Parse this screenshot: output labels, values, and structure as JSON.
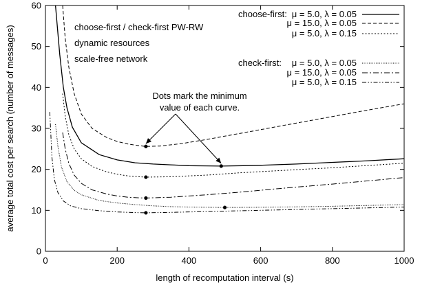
{
  "chart_data": {
    "type": "line",
    "xlabel": "length of recomputation interval (s)",
    "ylabel": "average total cost per search (number of messages)",
    "xlim": [
      0,
      1000
    ],
    "ylim": [
      0,
      60
    ],
    "xticks": [
      0,
      200,
      400,
      600,
      800,
      1000
    ],
    "yticks": [
      0,
      10,
      20,
      30,
      40,
      50,
      60
    ],
    "grid": false,
    "legend_position": "top-right",
    "text_notes": [
      "choose-first / check-first PW-RW",
      "dynamic resources",
      "scale-free network"
    ],
    "annotation": {
      "line1": "Dots mark the minimum",
      "line2": "value of each curve.",
      "points_to": [
        [
          280,
          25.6
        ],
        [
          490,
          20.8
        ]
      ]
    },
    "legend_groups": [
      "choose-first:",
      "check-first:"
    ],
    "series": [
      {
        "name": "μ = 5.0, λ = 0.05",
        "group": "choose-first:",
        "dash": "solid",
        "x": [
          28,
          40,
          50,
          60,
          75,
          100,
          150,
          200,
          250,
          300,
          350,
          400,
          450,
          490,
          550,
          600,
          700,
          800,
          900,
          1000
        ],
        "y": [
          60,
          48,
          40,
          35,
          30.3,
          26.5,
          23.6,
          22.3,
          21.6,
          21.3,
          21.1,
          20.9,
          20.85,
          20.8,
          20.9,
          21.0,
          21.3,
          21.7,
          22.1,
          22.6
        ],
        "min": [
          490,
          20.8
        ]
      },
      {
        "name": "μ = 15.0, λ = 0.05",
        "group": "choose-first:",
        "dash": "dashed",
        "x": [
          48,
          55,
          65,
          80,
          100,
          130,
          170,
          200,
          230,
          260,
          280,
          320,
          380,
          450,
          500,
          600,
          700,
          800,
          900,
          1000
        ],
        "y": [
          60,
          52,
          45,
          38.5,
          33.5,
          30,
          27.8,
          26.8,
          26.2,
          25.8,
          25.6,
          25.7,
          26.3,
          27.3,
          28.1,
          29.7,
          31.3,
          32.9,
          34.5,
          36
        ],
        "min": [
          280,
          25.6
        ]
      },
      {
        "name": "μ = 5.0, λ = 0.15",
        "group": "choose-first:",
        "dash": "dotted",
        "x": [
          48,
          55,
          65,
          80,
          100,
          130,
          170,
          200,
          230,
          260,
          280,
          350,
          450,
          550,
          650,
          800,
          1000
        ],
        "y": [
          38.5,
          33,
          28.5,
          25,
          22.6,
          20.7,
          19.4,
          18.8,
          18.4,
          18.2,
          18.1,
          18.2,
          18.6,
          19.2,
          19.7,
          20.4,
          21.5
        ],
        "min": [
          280,
          18.1
        ]
      },
      {
        "name": "μ = 5.0, λ = 0.05",
        "group": "check-first:",
        "dash": "fine-dotted",
        "x": [
          28,
          35,
          45,
          60,
          80,
          100,
          150,
          200,
          250,
          300,
          350,
          400,
          450,
          500,
          600,
          700,
          800,
          900,
          1000
        ],
        "y": [
          31,
          25.5,
          20.5,
          17,
          14.9,
          13.8,
          12.4,
          11.8,
          11.4,
          11.1,
          10.9,
          10.8,
          10.75,
          10.7,
          10.75,
          10.85,
          11,
          11.2,
          11.4
        ],
        "min": [
          500,
          10.7
        ]
      },
      {
        "name": "μ = 15.0, λ = 0.05",
        "group": "check-first:",
        "dash": "dash-dot",
        "x": [
          48,
          55,
          65,
          80,
          100,
          130,
          170,
          200,
          230,
          260,
          280,
          350,
          450,
          550,
          650,
          800,
          1000
        ],
        "y": [
          29,
          25,
          21.5,
          18.6,
          16.6,
          15,
          14,
          13.5,
          13.2,
          13.05,
          13,
          13.2,
          13.8,
          14.5,
          15.3,
          16.4,
          18
        ],
        "min": [
          280,
          13
        ]
      },
      {
        "name": "μ = 5.0, λ = 0.15",
        "group": "check-first:",
        "dash": "dash-dot-dot",
        "x": [
          12,
          18,
          25,
          35,
          50,
          70,
          100,
          150,
          200,
          250,
          280,
          350,
          450,
          550,
          650,
          800,
          1000
        ],
        "y": [
          34,
          23,
          17.5,
          14.3,
          12.3,
          11.1,
          10.4,
          9.9,
          9.6,
          9.45,
          9.4,
          9.5,
          9.7,
          9.9,
          10.1,
          10.4,
          10.8
        ],
        "min": [
          280,
          9.4
        ]
      }
    ]
  }
}
